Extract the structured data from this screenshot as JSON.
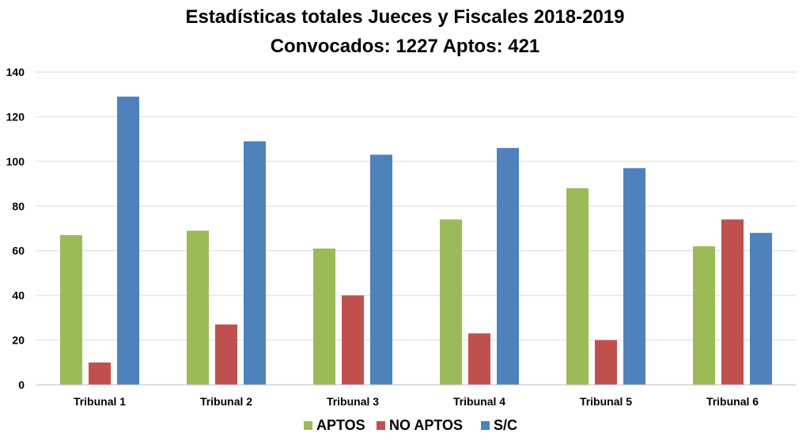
{
  "chart_data": {
    "type": "bar",
    "title": "Estadísticas totales Jueces y Fiscales 2018-2019",
    "subtitle": "Convocados: 1227 Aptos:  421",
    "xlabel": "",
    "ylabel": "",
    "ylim": [
      0,
      140
    ],
    "yticks": [
      "0",
      "20",
      "40",
      "60",
      "80",
      "100",
      "120",
      "140"
    ],
    "grid": true,
    "legend_position": "bottom",
    "categories": [
      "Tribunal 1",
      "Tribunal 2",
      "Tribunal 3",
      "Tribunal 4",
      "Tribunal 5",
      "Tribunal 6"
    ],
    "series": [
      {
        "name": "APTOS",
        "color": "#9BBB59",
        "values": [
          67,
          69,
          61,
          74,
          88,
          62
        ]
      },
      {
        "name": "NO APTOS",
        "color": "#C0504D",
        "values": [
          10,
          27,
          40,
          23,
          20,
          74
        ]
      },
      {
        "name": "S/C",
        "color": "#4F81BD",
        "values": [
          129,
          109,
          103,
          106,
          97,
          68
        ]
      }
    ]
  }
}
